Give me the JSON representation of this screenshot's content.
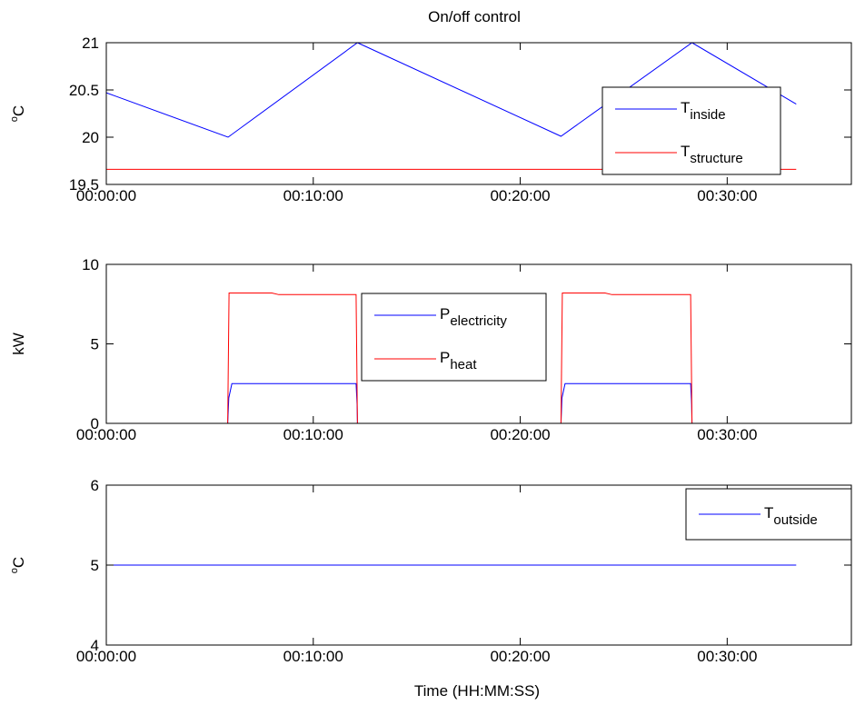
{
  "title": "On/off control",
  "xlabel": "Time (HH:MM:SS)",
  "colors": {
    "blue": "#0000ff",
    "red": "#ff0000",
    "axis": "#000000",
    "background": "#ffffff"
  },
  "chart_data": [
    {
      "type": "line",
      "ylabel": {
        "base": "C",
        "sup": "o"
      },
      "xlim": [
        0,
        2160
      ],
      "ylim": [
        19.5,
        21
      ],
      "xticks": [
        0,
        600,
        1200,
        1800
      ],
      "xtick_labels": [
        "00:00:00",
        "00:10:00",
        "00:20:00",
        "00:30:00"
      ],
      "yticks": [
        19.5,
        20,
        20.5,
        21
      ],
      "ytick_labels": [
        "19.5",
        "20",
        "20.5",
        "21"
      ],
      "grid": false,
      "legend": "right",
      "series": [
        {
          "name": "T",
          "sub": "inside",
          "color": "#0000ff",
          "x": [
            0,
            353,
            728,
            1318,
            1698,
            2000
          ],
          "y": [
            20.47,
            20.0,
            21.0,
            20.01,
            21.0,
            20.35
          ]
        },
        {
          "name": "T",
          "sub": "structure",
          "color": "#ff0000",
          "x": [
            0,
            2000
          ],
          "y": [
            19.66,
            19.66
          ]
        }
      ]
    },
    {
      "type": "line",
      "ylabel": {
        "base": "kW"
      },
      "xlim": [
        0,
        2160
      ],
      "ylim": [
        0,
        10
      ],
      "xticks": [
        0,
        600,
        1200,
        1800
      ],
      "xtick_labels": [
        "00:00:00",
        "00:10:00",
        "00:20:00",
        "00:30:00"
      ],
      "yticks": [
        0,
        5,
        10
      ],
      "ytick_labels": [
        "0",
        "5",
        "10"
      ],
      "grid": false,
      "legend": "center",
      "series": [
        {
          "name": "P",
          "sub": "electricity",
          "color": "#0000ff",
          "x": [
            0,
            352,
            355,
            364,
            724,
            727,
            728,
            1318,
            1321,
            1330,
            1694,
            1697,
            1698,
            2000
          ],
          "y": [
            0,
            0,
            1.6,
            2.5,
            2.5,
            1.2,
            0,
            0,
            1.6,
            2.5,
            2.5,
            1.2,
            0,
            0
          ]
        },
        {
          "name": "P",
          "sub": "heat",
          "color": "#ff0000",
          "x": [
            0,
            352,
            356,
            480,
            500,
            724,
            728,
            1318,
            1322,
            1446,
            1466,
            1694,
            1698,
            2000
          ],
          "y": [
            0,
            0,
            8.2,
            8.2,
            8.1,
            8.1,
            0,
            0,
            8.2,
            8.2,
            8.1,
            8.1,
            0,
            0
          ]
        }
      ]
    },
    {
      "type": "line",
      "ylabel": {
        "base": "C",
        "sup": "o"
      },
      "xlim": [
        0,
        2160
      ],
      "ylim": [
        4,
        6
      ],
      "xticks": [
        0,
        600,
        1200,
        1800
      ],
      "xtick_labels": [
        "00:00:00",
        "00:10:00",
        "00:20:00",
        "00:30:00"
      ],
      "yticks": [
        4,
        5,
        6
      ],
      "ytick_labels": [
        "4",
        "5",
        "6"
      ],
      "grid": false,
      "legend": "top-right",
      "series": [
        {
          "name": "T",
          "sub": "outside",
          "color": "#0000ff",
          "x": [
            0,
            2000
          ],
          "y": [
            5,
            5
          ]
        }
      ]
    }
  ]
}
